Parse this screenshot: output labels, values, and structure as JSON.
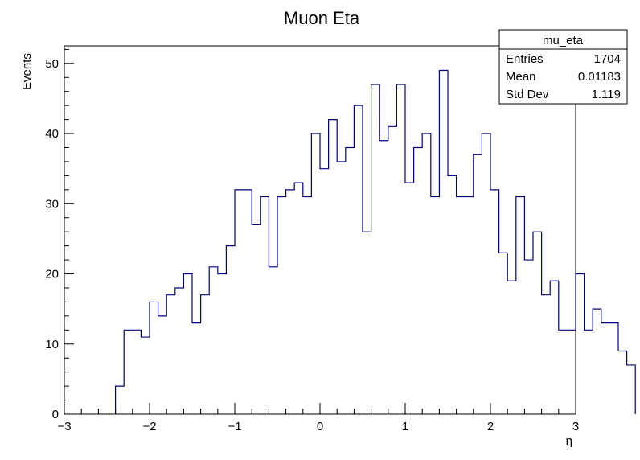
{
  "chart_data": {
    "type": "histogram",
    "title": "Muon Eta",
    "xlabel": "η",
    "ylabel": "Events",
    "xlim": [
      -3,
      3
    ],
    "ylim": [
      0,
      52.5
    ],
    "x_ticks": [
      -3,
      -2,
      -1,
      0,
      1,
      2,
      3
    ],
    "x_tick_labels": [
      "−3",
      "−2",
      "−1",
      "0",
      "1",
      "2",
      "3"
    ],
    "y_ticks": [
      0,
      10,
      20,
      30,
      40,
      50
    ],
    "y_tick_labels": [
      "0",
      "10",
      "20",
      "30",
      "40",
      "50"
    ],
    "bin_start": -2.4,
    "bin_width": 0.1,
    "values": [
      4,
      12,
      12,
      11,
      16,
      14,
      17,
      18,
      20,
      13,
      17,
      21,
      20,
      24,
      32,
      32,
      27,
      31,
      21,
      31,
      32,
      33,
      31,
      40,
      35,
      42,
      36,
      38,
      44,
      26,
      47,
      39,
      41,
      47,
      33,
      38,
      40,
      31,
      49,
      34,
      31,
      31,
      37,
      40,
      32,
      23,
      19,
      31,
      22,
      26,
      17,
      19,
      12,
      12,
      20,
      12,
      15,
      13,
      13,
      9,
      7
    ],
    "line_color": "#00007f",
    "stats": {
      "name": "mu_eta",
      "rows": [
        {
          "label": "Entries",
          "value": "1704"
        },
        {
          "label": "Mean",
          "value": "0.01183"
        },
        {
          "label": "Std Dev",
          "value": "1.119"
        }
      ]
    }
  }
}
